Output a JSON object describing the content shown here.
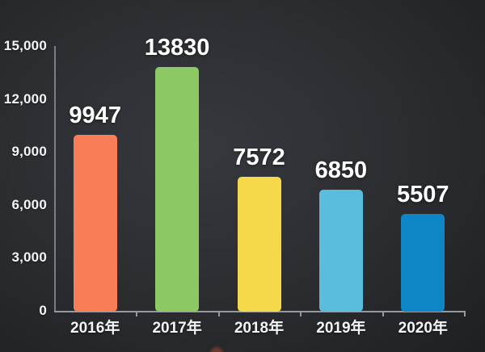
{
  "chart_data": {
    "type": "bar",
    "title": "",
    "xlabel": "",
    "ylabel": "",
    "categories": [
      "2016年",
      "2017年",
      "2018年",
      "2019年",
      "2020年"
    ],
    "values": [
      9947,
      13830,
      7572,
      6850,
      5507
    ],
    "value_labels": [
      "9947",
      "13830",
      "7572",
      "6850",
      "5507"
    ],
    "bar_colors": [
      "#F87E57",
      "#8CC863",
      "#F6D84B",
      "#5BBDDE",
      "#0E85C5"
    ],
    "ylim": [
      0,
      15000
    ],
    "y_ticks": [
      0,
      3000,
      6000,
      9000,
      12000,
      15000
    ],
    "y_tick_labels": [
      "0",
      "3,000",
      "6,000",
      "9,000",
      "12,000",
      "15,000"
    ],
    "grid": false,
    "legend": null,
    "background_color": "#2c2e32",
    "text_color": "#ffffff",
    "axis_color": "#96999e"
  }
}
